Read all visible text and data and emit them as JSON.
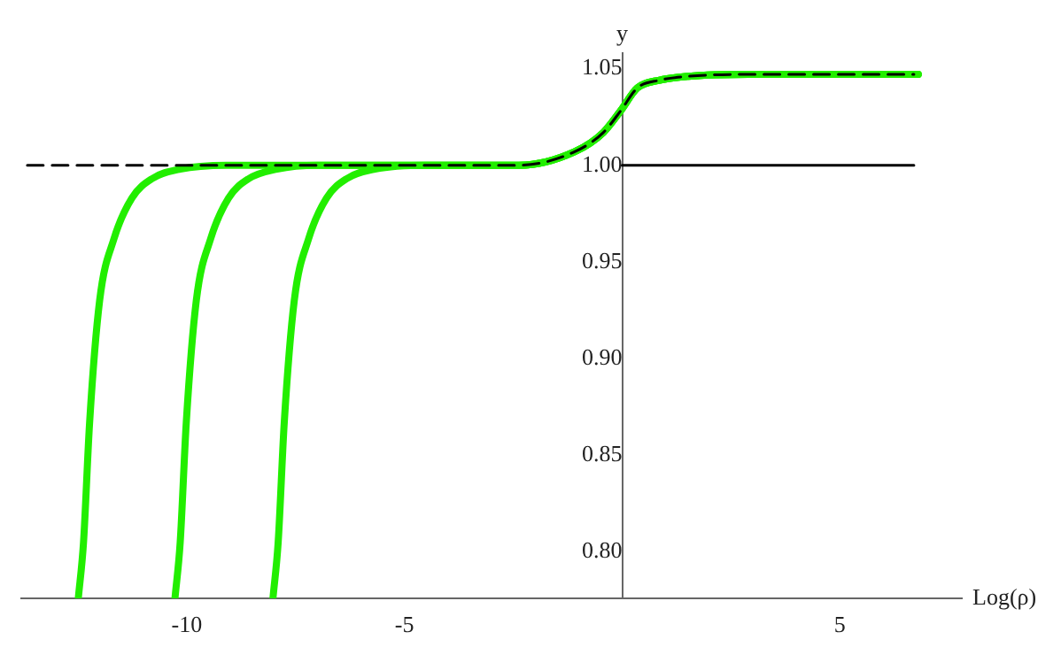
{
  "chart_data": {
    "type": "line",
    "xlabel": "Log(ρ)",
    "ylabel": "y",
    "xlim": [
      -13.8,
      7.8
    ],
    "ylim": [
      0.776,
      1.058
    ],
    "xticks": [
      -10,
      -5,
      5
    ],
    "yticks": [
      {
        "value": 0.8,
        "label": "0.80"
      },
      {
        "value": 0.85,
        "label": "0.85"
      },
      {
        "value": 0.9,
        "label": "0.90"
      },
      {
        "value": 0.95,
        "label": "0.95"
      },
      {
        "value": 1.0,
        "label": "1.00"
      },
      {
        "value": 1.05,
        "label": "1.05"
      }
    ],
    "grid": false,
    "legend": false,
    "marker": "none",
    "series": [
      {
        "color": "#22ee00",
        "x": [
          -12.49,
          -12.37,
          -12.23,
          -12.0,
          -11.67,
          -11.26,
          -10.8,
          -10.15,
          -9,
          -2.37,
          -1.09,
          -0.43,
          -0.04,
          0.35,
          0.86,
          1.52,
          2.9,
          6.8
        ],
        "values": [
          0.776,
          0.805,
          0.867,
          0.93,
          0.962,
          0.983,
          0.993,
          0.998,
          1.0,
          1.0,
          1.007,
          1.017,
          1.028,
          1.04,
          1.044,
          1.046,
          1.047,
          1.047
        ]
      },
      {
        "color": "#22ee00",
        "x": [
          -10.27,
          -10.15,
          -10.01,
          -9.78,
          -9.45,
          -9.04,
          -8.58,
          -7.93,
          -7,
          -2.37,
          -1.09,
          -0.43,
          -0.04,
          0.35,
          0.86,
          1.52,
          2.9,
          6.8
        ],
        "values": [
          0.776,
          0.805,
          0.867,
          0.93,
          0.962,
          0.983,
          0.993,
          0.998,
          1.0,
          1.0,
          1.007,
          1.017,
          1.028,
          1.04,
          1.044,
          1.046,
          1.047,
          1.047
        ]
      },
      {
        "color": "#22ee00",
        "x": [
          -8.02,
          -7.9,
          -7.76,
          -7.53,
          -7.2,
          -6.79,
          -6.33,
          -5.68,
          -4.5,
          -2.37,
          -1.09,
          -0.43,
          -0.04,
          0.35,
          0.86,
          1.52,
          2.9,
          6.8
        ],
        "values": [
          0.776,
          0.805,
          0.867,
          0.93,
          0.962,
          0.983,
          0.993,
          0.998,
          1.0,
          1.0,
          1.007,
          1.017,
          1.028,
          1.04,
          1.044,
          1.046,
          1.047,
          1.047
        ]
      },
      {
        "color": "#000000",
        "line_style": "solid",
        "x": [
          0,
          6.7
        ],
        "values": [
          1.0,
          1.0
        ]
      },
      {
        "color": "#000000",
        "line_style": "dashed",
        "x": [
          -13.66,
          -2.37,
          -1.09,
          -0.43,
          -0.04,
          0.35,
          0.86,
          1.52,
          2.9,
          6.7
        ],
        "values": [
          1.0,
          1.0,
          1.007,
          1.017,
          1.028,
          1.04,
          1.044,
          1.046,
          1.047,
          1.047
        ]
      }
    ]
  }
}
